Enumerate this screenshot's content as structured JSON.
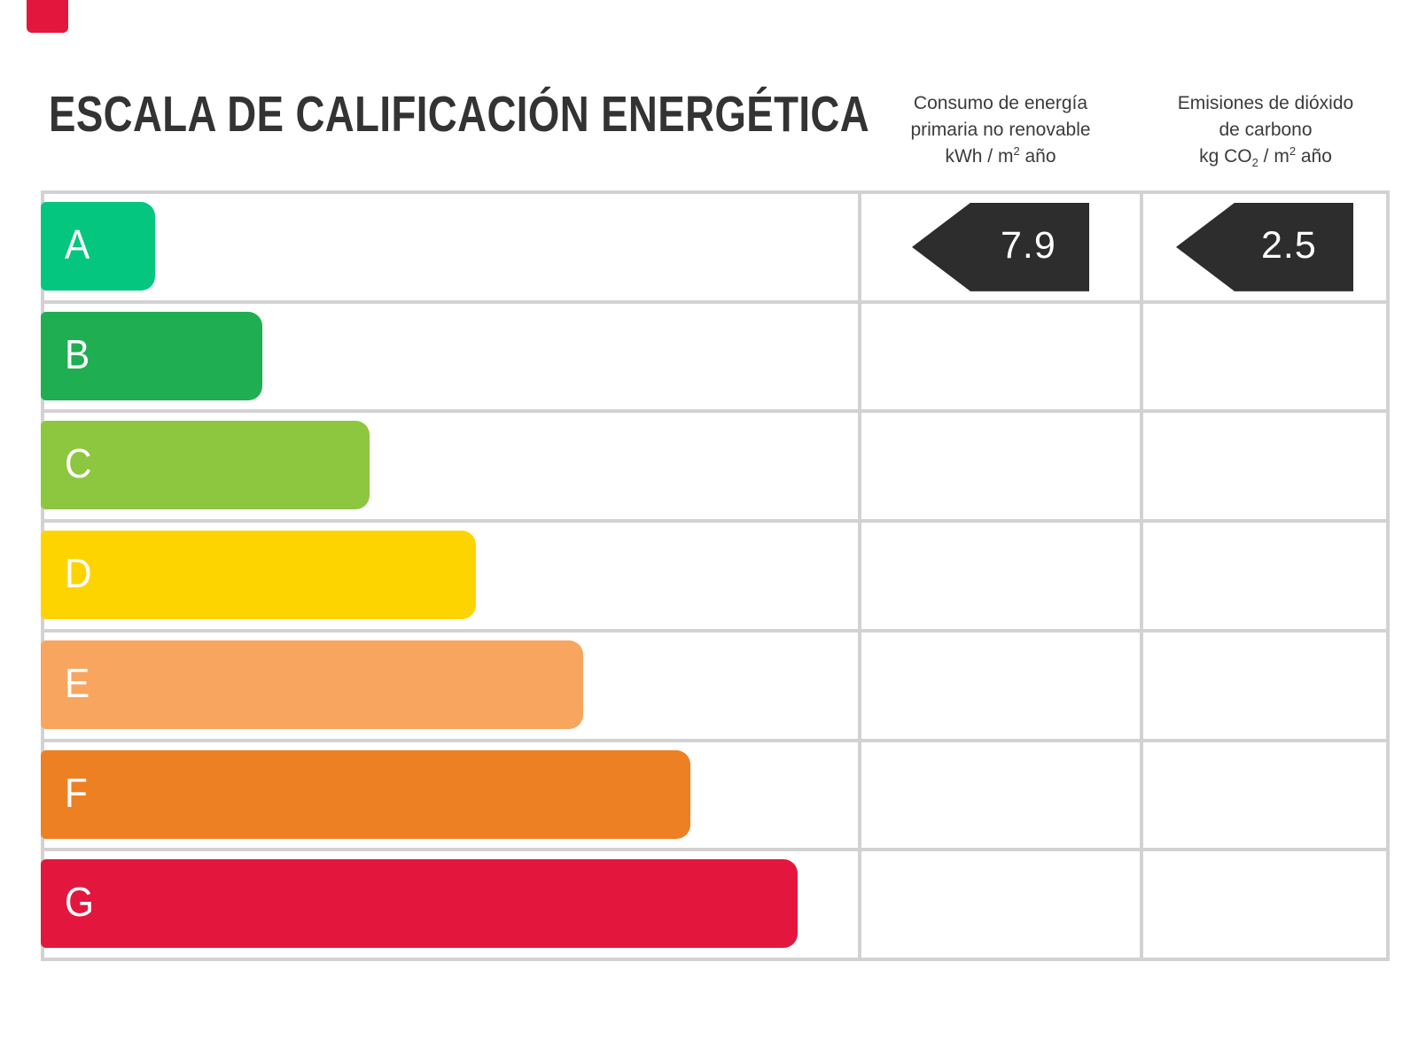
{
  "colors": {
    "grid": "#d2d2d2",
    "arrow": "#2d2d2d",
    "title": "#333333",
    "header": "#3b3b3b",
    "letter": "#ffffff"
  },
  "title": "ESCALA DE CALIFICACIÓN ENERGÉTICA",
  "headers": {
    "consumption": {
      "line1": "Consumo de energía",
      "line2": "primaria no renovable",
      "unit_base": "kWh / m",
      "unit_sup": "2",
      "unit_tail": " año"
    },
    "emissions": {
      "line1": "Emisiones de dióxido",
      "line2": "de carbono",
      "unit_base": "kg CO",
      "unit_sub": "2",
      "unit_mid": " / m",
      "unit_sup": "2",
      "unit_tail": " año"
    }
  },
  "ratings": [
    {
      "letter": "A",
      "color": "#05c67e",
      "width_pct": 14.1
    },
    {
      "letter": "B",
      "color": "#1fae52",
      "width_pct": 27.2
    },
    {
      "letter": "C",
      "color": "#8dc63f",
      "width_pct": 40.4
    },
    {
      "letter": "D",
      "color": "#fdd400",
      "width_pct": 53.5
    },
    {
      "letter": "E",
      "color": "#f8a55f",
      "width_pct": 66.7
    },
    {
      "letter": "F",
      "color": "#ec8023",
      "width_pct": 79.8
    },
    {
      "letter": "G",
      "color": "#e3173d",
      "width_pct": 93.0
    }
  ],
  "values": {
    "consumption": "7.9",
    "emissions": "2.5"
  },
  "decor": {
    "red_fragment_color": "#e3173d"
  },
  "chart_data": {
    "type": "bar",
    "title": "ESCALA DE CALIFICACIÓN ENERGÉTICA",
    "categories": [
      "A",
      "B",
      "C",
      "D",
      "E",
      "F",
      "G"
    ],
    "values": [
      14.1,
      27.2,
      40.4,
      53.5,
      66.7,
      79.8,
      93.0
    ],
    "values_unit": "bar length as % of scale column (schematic equal steps)",
    "bar_colors": [
      "#05c67e",
      "#1fae52",
      "#8dc63f",
      "#fdd400",
      "#f8a55f",
      "#ec8023",
      "#e3173d"
    ],
    "column_headers": [
      "Consumo de energía primaria no renovable kWh / m² año",
      "Emisiones de dióxido de carbono kg CO₂ / m² año"
    ],
    "indicators": [
      {
        "column": "Consumo de energía primaria no renovable (kWh / m² año)",
        "value": 7.9,
        "row": "A"
      },
      {
        "column": "Emisiones de dióxido de carbono (kg CO₂ / m² año)",
        "value": 2.5,
        "row": "A"
      }
    ],
    "xlabel": "",
    "ylabel": "",
    "grid": true,
    "legend": false
  }
}
